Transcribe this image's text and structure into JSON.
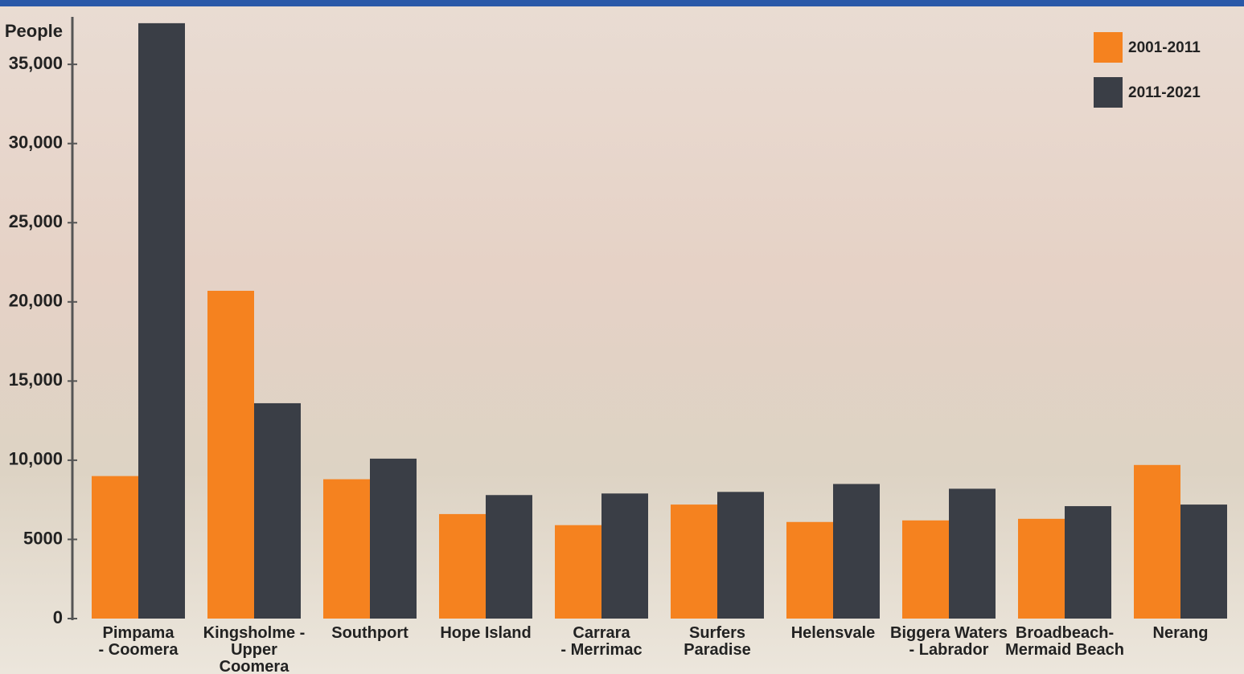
{
  "chart_data": {
    "type": "bar",
    "y_label": "People",
    "categories": [
      "Pimpama\n- Coomera",
      "Kingsholme -\nUpper Coomera",
      "Southport",
      "Hope Island",
      "Carrara\n- Merrimac",
      "Surfers\nParadise",
      "Helensvale",
      "Biggera Waters\n- Labrador",
      "Broadbeach-\nMermaid Beach",
      "Nerang"
    ],
    "series": [
      {
        "name": "2001-2011",
        "color": "#f5821f",
        "values": [
          9000,
          20700,
          8800,
          6600,
          5900,
          7200,
          6100,
          6200,
          6300,
          9700
        ]
      },
      {
        "name": "2011-2021",
        "color": "#3a3e46",
        "values": [
          37600,
          13600,
          10100,
          7800,
          7900,
          8000,
          8500,
          8200,
          7100,
          7200
        ]
      }
    ],
    "ylim": [
      0,
      38000
    ],
    "yticks": [
      0,
      5000,
      {
        "value": 10000,
        "label": "10,000"
      },
      {
        "value": 15000,
        "label": "15,000"
      },
      {
        "value": 20000,
        "label": "20,000"
      },
      {
        "value": 25000,
        "label": "25,000"
      },
      {
        "value": 30000,
        "label": "30,000"
      },
      {
        "value": 35000,
        "label": "35,000"
      }
    ],
    "legend": "top-right"
  }
}
